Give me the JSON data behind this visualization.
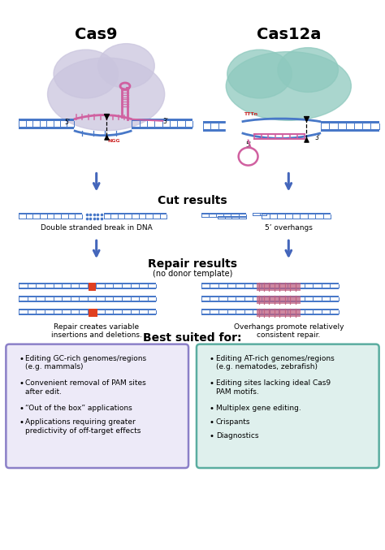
{
  "bg_color": "#ffffff",
  "cas9_title": "Cas9",
  "cas12a_title": "Cas12a",
  "cut_results_label": "Cut results",
  "repair_results_label": "Repair results",
  "repair_results_sublabel": "(no donor template)",
  "best_suited_label": "Best suited for:",
  "cas9_cut_label": "Double stranded break in DNA",
  "cas12a_cut_label": "5’ overhangs",
  "cas9_repair_label": "Repair creates variable\ninsertions and deletions.",
  "cas12a_repair_label": "Overhangs promote relatively\nconsistent repair.",
  "cas9_blob_color": "#cac5de",
  "cas12a_blob_color": "#8ec9be",
  "cas9_box_facecolor": "#edeaf8",
  "cas9_box_edgecolor": "#8b80c8",
  "cas12a_box_facecolor": "#dff0ed",
  "cas12a_box_edgecolor": "#5aada0",
  "dna_blue": "#4878c8",
  "dna_red": "#cc2222",
  "dna_pink": "#d060a0",
  "arrow_color": "#4466bb",
  "cas9_items": [
    "Editing GC-rich genomes/regions\n(e.g. mammals)",
    "Convenient removal of PAM sites\nafter edit.",
    "“Out of the box” applications",
    "Applications requiring greater\npredictivity of off-target effects"
  ],
  "cas12a_items": [
    "Editing AT-rich genomes/regions\n(e.g. nematodes, zebrafish)",
    "Editing sites lacking ideal Cas9\nPAM motifs.",
    "Multiplex gene editing.",
    "Crispants",
    "Diagnostics"
  ]
}
